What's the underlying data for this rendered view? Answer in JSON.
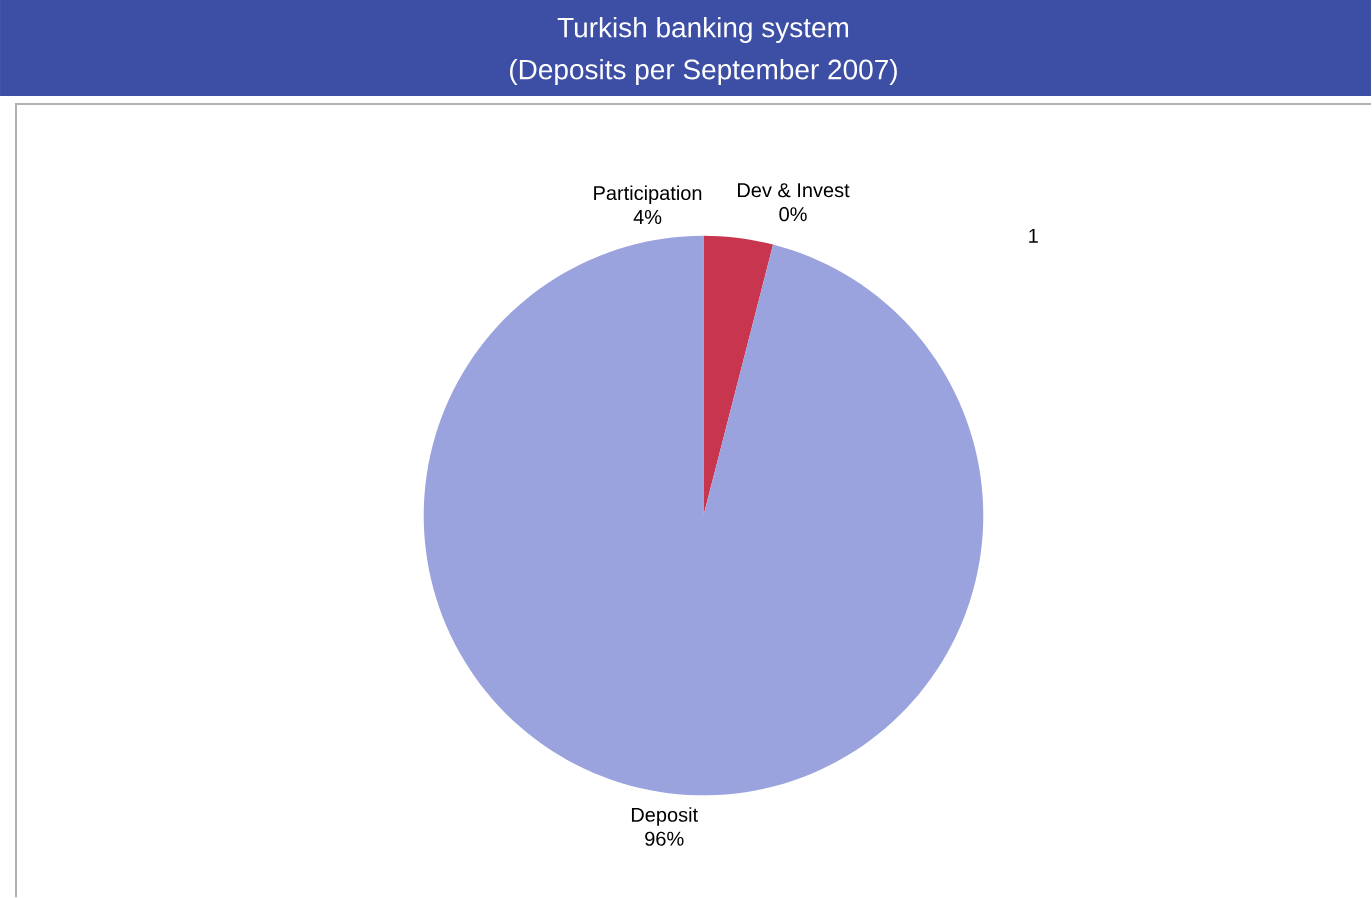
{
  "chart_data": {
    "type": "pie",
    "title": "Turkish banking system",
    "subtitle": "(Deposits per September 2007)",
    "categories": [
      "Dev & Invest",
      "Participation",
      "Deposit"
    ],
    "values": [
      0,
      4,
      96
    ],
    "value_labels": [
      "0%",
      "4%",
      "96%"
    ],
    "colors": [
      "#8e3a8e",
      "#c8354f",
      "#9aa3dd"
    ],
    "annotations": [
      "1"
    ]
  }
}
